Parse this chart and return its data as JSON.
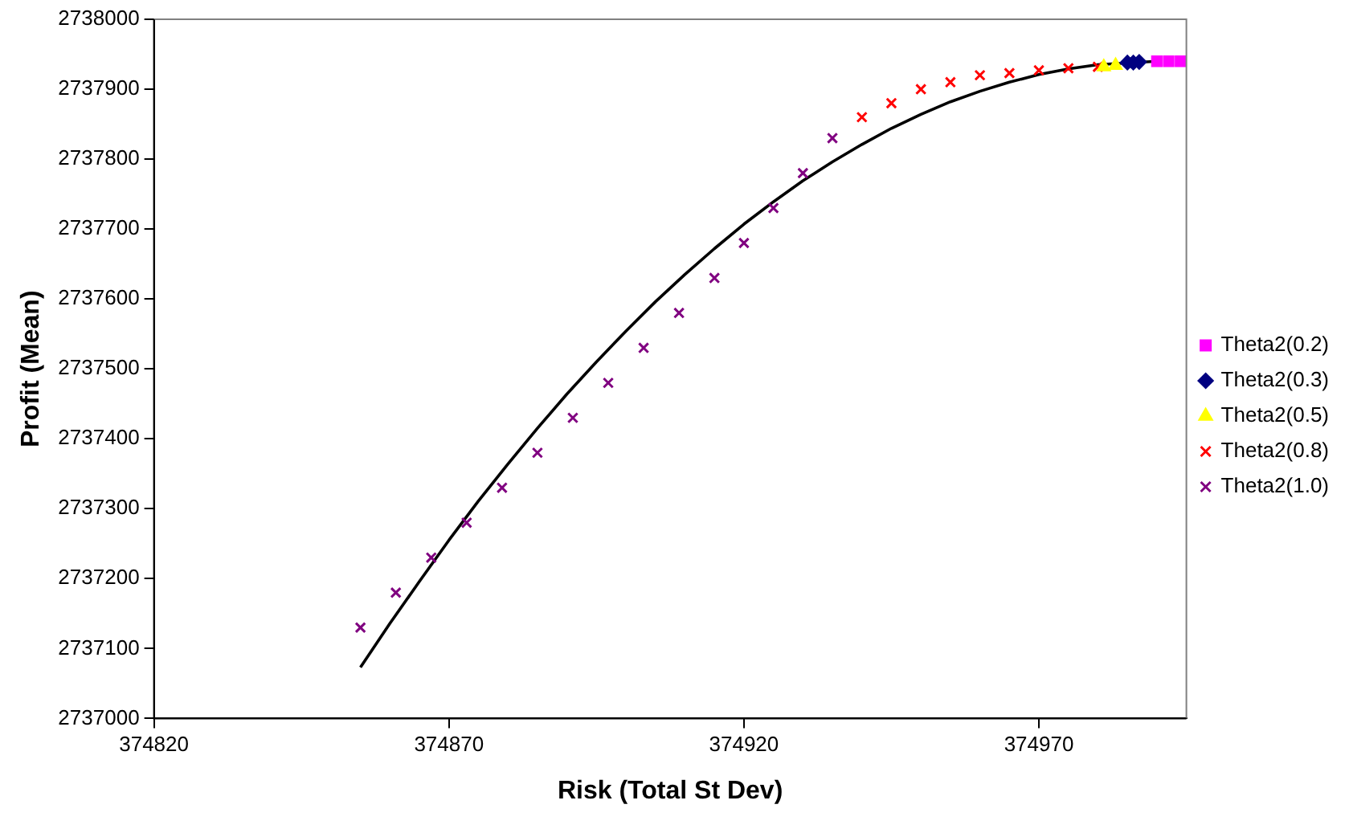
{
  "chart_data": {
    "type": "scatter",
    "xlabel": "Risk (Total St Dev)",
    "ylabel": "Profit (Mean)",
    "xlim": [
      374820,
      374995
    ],
    "xticks": [
      374820,
      374870,
      374920,
      374970
    ],
    "ylim": [
      2737000,
      2738000
    ],
    "yticks": [
      2737000,
      2737100,
      2737200,
      2737300,
      2737400,
      2737500,
      2737600,
      2737700,
      2737800,
      2737900,
      2738000
    ],
    "grid": false,
    "legend": "right",
    "series": [
      {
        "name": "Theta2(0.2)",
        "color": "#ff00ff",
        "marker": "square",
        "x": [
          374990,
          374992,
          374994
        ],
        "values": [
          2737940,
          2737940,
          2737940
        ]
      },
      {
        "name": "Theta2(0.3)",
        "color": "#000080",
        "marker": "diamond",
        "x": [
          374985,
          374986,
          374987
        ],
        "values": [
          2737938,
          2737938,
          2737939
        ]
      },
      {
        "name": "Theta2(0.5)",
        "color": "#ffff00",
        "marker": "triangle",
        "x": [
          374981,
          374983
        ],
        "values": [
          2737932,
          2737934
        ]
      },
      {
        "name": "Theta2(0.8)",
        "color": "#ff0000",
        "marker": "cross",
        "x": [
          374940,
          374945,
          374950,
          374955,
          374960,
          374965,
          374970,
          374975,
          374980
        ],
        "values": [
          2737860,
          2737880,
          2737900,
          2737910,
          2737920,
          2737923,
          2737927,
          2737930,
          2737932
        ]
      },
      {
        "name": "Theta2(1.0)",
        "color": "#800080",
        "marker": "cross",
        "x": [
          374855,
          374861,
          374867,
          374873,
          374879,
          374885,
          374891,
          374897,
          374903,
          374909,
          374915,
          374920,
          374925,
          374930,
          374935
        ],
        "values": [
          2737130,
          2737180,
          2737230,
          2737280,
          2737330,
          2737380,
          2737430,
          2737480,
          2737530,
          2737580,
          2737630,
          2737680,
          2737730,
          2737780,
          2737830
        ]
      },
      {
        "type": "line",
        "color": "#000000",
        "marker": "none",
        "line_style": "solid",
        "x": [
          374855,
          374860,
          374865,
          374870,
          374875,
          374880,
          374885,
          374890,
          374895,
          374900,
          374905,
          374910,
          374915,
          374920,
          374925,
          374930,
          374935,
          374940,
          374945,
          374950,
          374955,
          374960,
          374965,
          374970,
          374975,
          374980,
          374990
        ],
        "values": [
          2737073,
          2737136,
          2737196,
          2737255,
          2737311,
          2737364,
          2737415,
          2737464,
          2737510,
          2737554,
          2737596,
          2737635,
          2737672,
          2737707,
          2737739,
          2737769,
          2737796,
          2737821,
          2737844,
          2737864,
          2737882,
          2737897,
          2737910,
          2737921,
          2737929,
          2737935,
          2737940
        ]
      }
    ]
  }
}
